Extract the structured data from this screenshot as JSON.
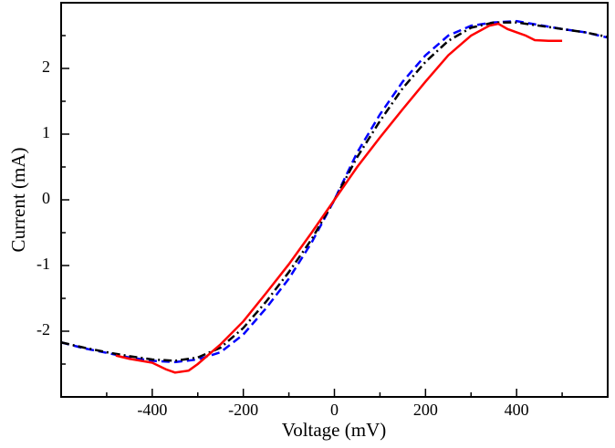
{
  "chart_data": {
    "type": "line",
    "xlabel": "Voltage (mV)",
    "ylabel": "Current (mA)",
    "xlim": [
      -600,
      600
    ],
    "ylim": [
      -3,
      3
    ],
    "xticks": [
      -400,
      -200,
      0,
      200,
      400
    ],
    "yticks": [
      -2,
      -1,
      0,
      1,
      2
    ],
    "xminorticks": [
      -500,
      -300,
      -100,
      100,
      300,
      500
    ],
    "yminorticks": [
      -2.5,
      -1.5,
      -0.5,
      0.5,
      1.5,
      2.5
    ],
    "grid": false,
    "series": [
      {
        "color": "#0000ff",
        "style": "dashed",
        "x": [
          -600,
          -550,
          -500,
          -450,
          -400,
          -350,
          -300,
          -250,
          -200,
          -150,
          -100,
          -50,
          0,
          50,
          100,
          150,
          200,
          250,
          300,
          350,
          400,
          450,
          500,
          550,
          600
        ],
        "values": [
          -2.17,
          -2.26,
          -2.33,
          -2.4,
          -2.45,
          -2.47,
          -2.43,
          -2.32,
          -2.05,
          -1.65,
          -1.2,
          -0.65,
          0,
          0.72,
          1.3,
          1.8,
          2.2,
          2.5,
          2.65,
          2.7,
          2.72,
          2.66,
          2.6,
          2.55,
          2.47
        ]
      },
      {
        "color": "#000000",
        "style": "dashdot",
        "x": [
          -600,
          -550,
          -500,
          -450,
          -400,
          -350,
          -300,
          -250,
          -200,
          -150,
          -100,
          -50,
          0,
          50,
          100,
          150,
          200,
          250,
          300,
          350,
          400,
          450,
          500,
          550,
          600
        ],
        "values": [
          -2.17,
          -2.25,
          -2.32,
          -2.38,
          -2.43,
          -2.45,
          -2.4,
          -2.25,
          -1.95,
          -1.55,
          -1.1,
          -0.6,
          0,
          0.65,
          1.2,
          1.7,
          2.1,
          2.42,
          2.62,
          2.7,
          2.7,
          2.65,
          2.6,
          2.55,
          2.48
        ]
      },
      {
        "color": "#ff0000",
        "style": "solid",
        "x": [
          -480,
          -450,
          -400,
          -370,
          -350,
          -320,
          -300,
          -250,
          -200,
          -150,
          -100,
          -50,
          0,
          50,
          100,
          150,
          200,
          250,
          300,
          340,
          360,
          380,
          400,
          420,
          440,
          470,
          500
        ],
        "values": [
          -2.37,
          -2.42,
          -2.48,
          -2.58,
          -2.63,
          -2.6,
          -2.5,
          -2.2,
          -1.85,
          -1.42,
          -0.98,
          -0.5,
          0,
          0.5,
          0.95,
          1.38,
          1.8,
          2.2,
          2.5,
          2.65,
          2.68,
          2.6,
          2.55,
          2.5,
          2.43,
          2.42,
          2.42
        ]
      }
    ]
  }
}
